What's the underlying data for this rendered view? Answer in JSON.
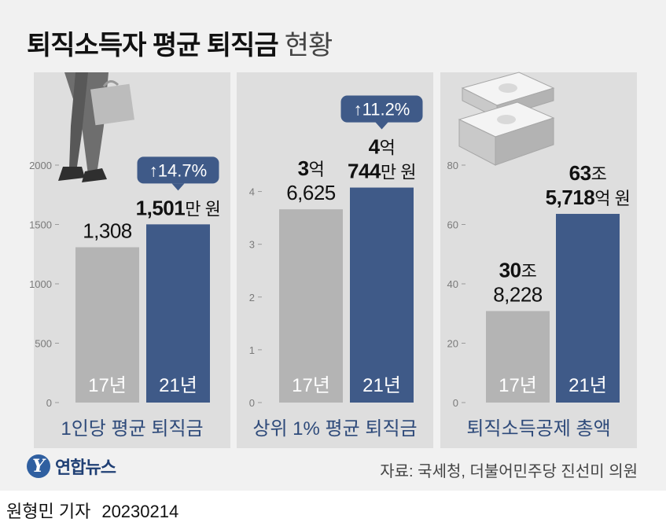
{
  "header": {
    "title": "퇴직소득자 평균 퇴직금",
    "subtitle": "현황"
  },
  "footer": {
    "logo_text": "연합뉴스",
    "source": "자료: 국세청, 더불어민주당 진선미 의원",
    "reporter": "원형민 기자",
    "date": "20230214"
  },
  "colors": {
    "bar_prev": "#b4b4b4",
    "bar_curr": "#3f5a88",
    "badge": "#3f5a88",
    "panel_bg": "#dedede",
    "title_blue": "#2e4a7a"
  },
  "icons": [
    "walking-person-briefcase-icon",
    "banknote-stack-icon"
  ],
  "chart_data": [
    {
      "type": "bar",
      "title": "1인당 평균 퇴직금",
      "categories": [
        "17년",
        "21년"
      ],
      "values": [
        1308,
        1501
      ],
      "value_labels": [
        [
          "1,308"
        ],
        [
          "1,501만 원"
        ]
      ],
      "change": "↑14.7%",
      "ylim": [
        0,
        2000
      ],
      "yticks": [
        0,
        500,
        1000,
        1500,
        2000
      ],
      "ytick_labels": [
        "0",
        "500",
        "1000",
        "1500",
        "2000"
      ],
      "grid": false
    },
    {
      "type": "bar",
      "title": "상위 1% 평균 퇴직금",
      "categories": [
        "17년",
        "21년"
      ],
      "values": [
        3.6625,
        4.0744
      ],
      "value_labels": [
        [
          "3억",
          "6,625"
        ],
        [
          "4억",
          "744만 원"
        ]
      ],
      "change": "↑11.2%",
      "ylim": [
        0,
        4.5
      ],
      "yticks": [
        0,
        1,
        2,
        3,
        4
      ],
      "ytick_labels": [
        "0",
        "1",
        "2",
        "3",
        "4"
      ],
      "grid": false
    },
    {
      "type": "bar",
      "title": "퇴직소득공제 총액",
      "categories": [
        "17년",
        "21년"
      ],
      "values": [
        30.8228,
        63.5718
      ],
      "value_labels": [
        [
          "30조",
          "8,228"
        ],
        [
          "63조",
          "5,718억 원"
        ]
      ],
      "change": "",
      "ylim": [
        0,
        80
      ],
      "yticks": [
        0,
        20,
        40,
        60,
        80
      ],
      "ytick_labels": [
        "0",
        "20",
        "40",
        "60",
        "80"
      ],
      "grid": false
    }
  ]
}
